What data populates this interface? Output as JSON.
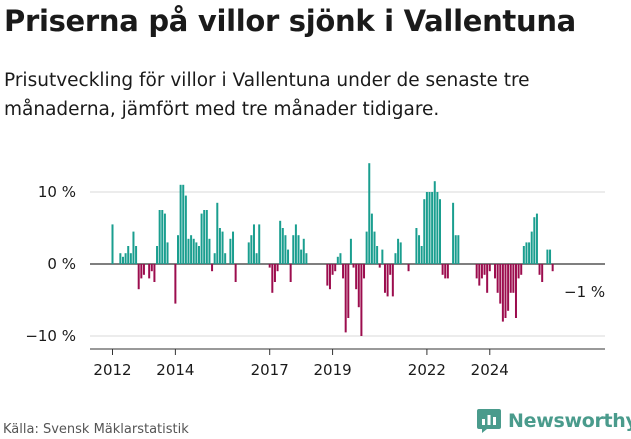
{
  "title": "Priserna på villor sjönk i Vallentuna",
  "subtitle": "Prisutveckling för villor i Vallentuna under de senaste tre månaderna, jämfört med tre månader tidigare.",
  "source": "Källa: Svensk Mäklarstatistik",
  "brand": "Newsworthy",
  "annotation": "−1 %",
  "colors": {
    "positive": "#1a9e8f",
    "negative": "#9c0d4e",
    "grid": "#d9d9d9",
    "brand": "#4a9b8c"
  },
  "chart_data": {
    "type": "bar",
    "unit": "%",
    "ylim": [
      -10,
      13
    ],
    "y_ticks": [
      10,
      0,
      -10
    ],
    "y_tick_labels": [
      "10 %",
      "0 %",
      "−10 %"
    ],
    "x_ticks": [
      "2012",
      "2014",
      "2017",
      "2019",
      "2022",
      "2024"
    ],
    "x_tick_positions": [
      2012,
      2014,
      2017,
      2019,
      2022,
      2024
    ],
    "x_start": 2012,
    "bars_per_year": 12,
    "values": [
      5.5,
      0,
      0,
      1.5,
      1,
      1.5,
      2.5,
      1.5,
      4.5,
      2.5,
      -3.5,
      -2,
      -1.5,
      0,
      -2,
      -1,
      -2.5,
      2.5,
      7.5,
      7.5,
      7,
      3,
      0,
      0,
      -5.5,
      4,
      11,
      11,
      9.5,
      3.5,
      4,
      3.5,
      3,
      2.5,
      7,
      7.5,
      7.5,
      3.5,
      -1,
      1.5,
      8.5,
      5,
      4.5,
      1.5,
      0,
      3.5,
      4.5,
      -2.5,
      0,
      0,
      0,
      0,
      3,
      4,
      5.5,
      1.5,
      5.5,
      0,
      0,
      0,
      -0.5,
      -4,
      -2.5,
      -1,
      6,
      5,
      4,
      2,
      -2.5,
      4,
      5.5,
      4,
      2,
      3.5,
      1.5,
      0,
      0,
      0,
      0,
      0,
      0,
      0,
      -3,
      -3.5,
      -1.5,
      -1,
      1,
      1.5,
      -2,
      -9.5,
      -7.5,
      3.5,
      -0.5,
      -3.5,
      -6,
      -10,
      -2,
      4.5,
      14,
      7,
      4.5,
      2.5,
      -0.5,
      2,
      -4,
      -4.5,
      -1.5,
      -4.5,
      1.5,
      3.5,
      3,
      0,
      0,
      -1,
      0,
      0,
      5,
      4,
      2.5,
      9,
      10,
      10,
      10,
      11.5,
      10,
      9,
      -1.5,
      -2,
      -2,
      0,
      8.5,
      4,
      4,
      0,
      0,
      0,
      0,
      0,
      0,
      -2,
      -3,
      -2,
      -1.5,
      -4,
      -1,
      0,
      -2,
      -4,
      -5.5,
      -8,
      -7.5,
      -6.5,
      -4,
      -4,
      -7.5,
      -2,
      -1.5,
      2.5,
      3,
      3,
      4.5,
      6.5,
      7,
      -1.5,
      -2.5,
      0,
      2,
      2,
      -1
    ]
  }
}
